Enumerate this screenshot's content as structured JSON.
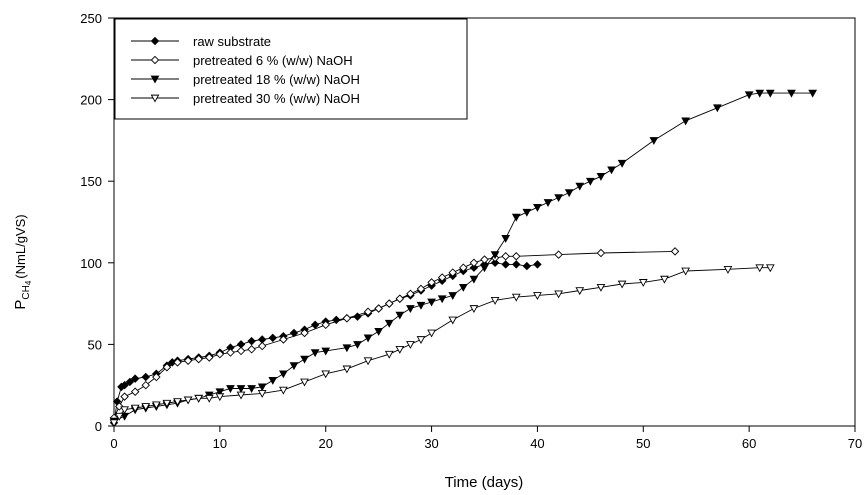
{
  "chart_data": {
    "type": "line",
    "title": "",
    "xlabel": "Time (days)",
    "ylabel_main": "P",
    "ylabel_sub": "CH",
    "ylabel_subsub": "4",
    "ylabel_unit": "(NmL/gVS)",
    "xlim": [
      0,
      70
    ],
    "ylim": [
      0,
      250
    ],
    "xticks": [
      0,
      10,
      20,
      30,
      40,
      50,
      60,
      70
    ],
    "yticks": [
      0,
      50,
      100,
      150,
      200,
      250
    ],
    "grid": false,
    "legend_position": "top-left",
    "series": [
      {
        "name": "raw substrate",
        "marker": "diamond-filled",
        "x": [
          0,
          0.3,
          0.7,
          1,
          1.5,
          2,
          3,
          4,
          5,
          5.5,
          6,
          7,
          8,
          9,
          10,
          11,
          12,
          13,
          14,
          15,
          16,
          17,
          18,
          19,
          20,
          21,
          22,
          23,
          24,
          25,
          26,
          27,
          28,
          29,
          30,
          31,
          32,
          33,
          34,
          35,
          36,
          37,
          38,
          39,
          40
        ],
        "y": [
          2,
          15,
          24,
          25,
          27,
          29,
          30,
          32,
          37,
          39,
          40,
          41,
          42,
          43,
          45,
          48,
          50,
          52,
          53,
          54,
          55,
          57,
          59,
          62,
          64,
          65,
          66,
          67,
          69,
          72,
          75,
          78,
          80,
          83,
          86,
          89,
          92,
          95,
          97,
          99,
          100,
          99,
          99,
          98,
          99
        ]
      },
      {
        "name": "pretreated 6 % (w/w) NaOH",
        "marker": "diamond-open",
        "x": [
          0,
          0.5,
          1,
          2,
          3,
          4,
          5,
          6,
          7,
          8,
          9,
          10,
          11,
          12,
          13,
          14,
          16,
          18,
          20,
          22,
          24,
          25,
          26,
          27,
          28,
          29,
          30,
          31,
          32,
          33,
          34,
          35,
          36,
          37,
          38,
          42,
          46,
          53
        ],
        "y": [
          5,
          12,
          18,
          21,
          25,
          30,
          36,
          39,
          40,
          41,
          42,
          44,
          45,
          46,
          47,
          49,
          53,
          57,
          62,
          66,
          70,
          72,
          75,
          78,
          81,
          84,
          88,
          91,
          94,
          97,
          100,
          102,
          103,
          104,
          104,
          105,
          106,
          107
        ]
      },
      {
        "name": "pretreated 18 % (w/w) NaOH",
        "marker": "triangle-down-filled",
        "x": [
          0,
          1,
          2,
          3,
          4,
          5,
          6,
          7,
          8,
          9,
          10,
          11,
          12,
          13,
          14,
          15,
          16,
          17,
          18,
          19,
          20,
          22,
          23,
          24,
          25,
          26,
          27,
          28,
          29,
          30,
          31,
          32,
          33,
          34,
          35,
          36,
          37,
          38,
          39,
          40,
          41,
          42,
          43,
          44,
          45,
          46,
          47,
          48,
          51,
          54,
          57,
          60,
          61,
          62,
          64,
          66
        ],
        "y": [
          3,
          6,
          10,
          11,
          12,
          13,
          14,
          16,
          17,
          19,
          21,
          23,
          23,
          23,
          24,
          28,
          32,
          37,
          41,
          45,
          46,
          48,
          50,
          54,
          58,
          63,
          68,
          72,
          74,
          76,
          78,
          80,
          85,
          90,
          97,
          105,
          115,
          128,
          131,
          134,
          137,
          140,
          143,
          147,
          150,
          153,
          157,
          161,
          175,
          187,
          195,
          203,
          204,
          204,
          204,
          204
        ]
      },
      {
        "name": "pretreated 30 % (w/w) NaOH",
        "marker": "triangle-down-open",
        "x": [
          0,
          0.5,
          1,
          2,
          3,
          4,
          5,
          6,
          7,
          8,
          9,
          10,
          12,
          14,
          16,
          18,
          20,
          22,
          24,
          26,
          27,
          28,
          29,
          30,
          32,
          34,
          36,
          38,
          40,
          42,
          44,
          46,
          48,
          50,
          52,
          54,
          58,
          61,
          62
        ],
        "y": [
          2,
          6,
          10,
          11,
          12,
          13,
          14,
          15,
          16,
          17,
          17,
          18,
          19,
          20,
          22,
          27,
          32,
          35,
          40,
          44,
          47,
          50,
          53,
          57,
          65,
          72,
          77,
          79,
          80,
          81,
          83,
          85,
          87,
          88,
          90,
          95,
          96,
          97,
          97
        ]
      }
    ]
  }
}
